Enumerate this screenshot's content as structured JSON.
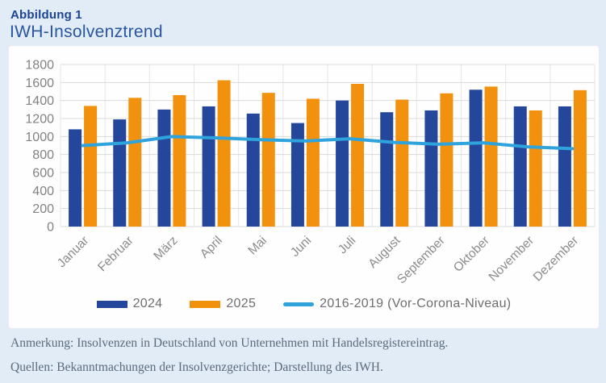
{
  "figure": {
    "label": "Abbildung 1",
    "title": "IWH-Insolvenztrend"
  },
  "chart_data": {
    "type": "bar",
    "subtype": "grouped bars with overlay line",
    "title": "IWH-Insolvenztrend",
    "categories": [
      "Januar",
      "Februar",
      "März",
      "April",
      "Mai",
      "Juni",
      "Juli",
      "August",
      "September",
      "Oktober",
      "November",
      "Dezember"
    ],
    "series": [
      {
        "key": "2024",
        "name": "2024",
        "kind": "bar",
        "color": "#24469b",
        "values": [
          1080,
          1190,
          1300,
          1335,
          1255,
          1150,
          1400,
          1270,
          1290,
          1520,
          1335,
          1335
        ]
      },
      {
        "key": "2025",
        "name": "2025",
        "kind": "bar",
        "color": "#f2910d",
        "values": [
          1340,
          1430,
          1460,
          1625,
          1485,
          1420,
          1585,
          1410,
          1480,
          1555,
          1290,
          1515
        ]
      },
      {
        "key": "vor-corona",
        "name": "2016-2019 (Vor-Corona-Niveau)",
        "kind": "line",
        "color": "#2fa3dc",
        "values": [
          900,
          930,
          1000,
          985,
          965,
          950,
          975,
          935,
          915,
          930,
          885,
          865
        ]
      }
    ],
    "xlabel": "",
    "ylabel": "",
    "ylim": [
      0,
      1800
    ],
    "yticks": [
      0,
      200,
      400,
      600,
      800,
      1000,
      1200,
      1400,
      1600,
      1800
    ],
    "grid": true,
    "legend_position": "bottom"
  },
  "notes": {
    "line1": "Anmerkung: Insolvenzen in Deutschland von Unternehmen mit Handelsregistereintrag.",
    "line2": "Quellen: Bekanntmachungen der Insolvenzgerichte; Darstellung des IWH."
  },
  "colors": {
    "page_background": "#e1ecf7",
    "panel_background": "#fefefe",
    "title_text": "#2a55a0",
    "bar_2024": "#24469b",
    "bar_2025": "#f2910d",
    "line_vor_corona": "#2fa3dc",
    "gridline": "#d9d9d9",
    "axis_text": "#828282",
    "notes_text": "#5c6b7c"
  }
}
